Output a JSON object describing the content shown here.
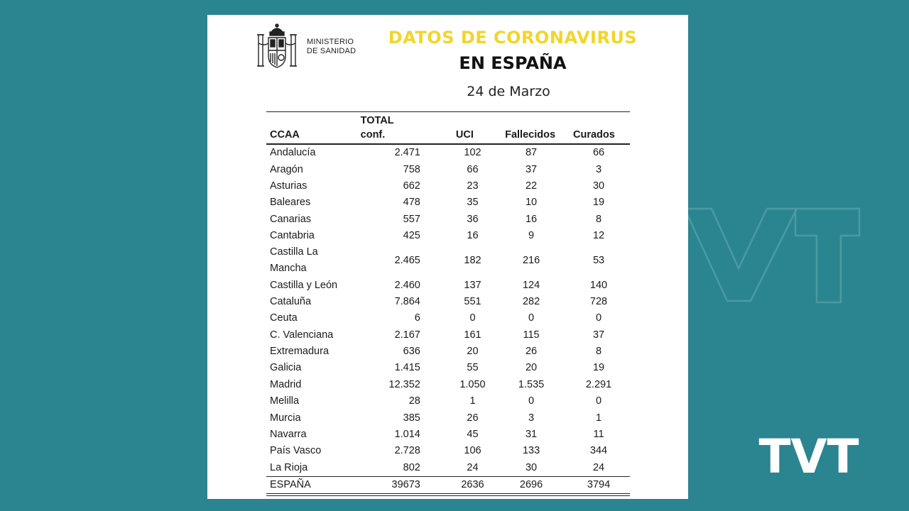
{
  "ministry": {
    "line1": "MINISTERIO",
    "line2": "DE SANIDAD"
  },
  "title": {
    "line1": "DATOS DE CORONAVIRUS",
    "line2": "EN ESPAÑA",
    "date": "24 de Marzo"
  },
  "colors": {
    "background": "#2b8590",
    "title_accent": "#f2d52b",
    "logo": "#ffffff"
  },
  "brand": {
    "logo_text": "TVT"
  },
  "table": {
    "headers": {
      "region": "CCAA",
      "total_line1": "TOTAL",
      "total_line2": "conf.",
      "uci": "UCI",
      "fallecidos": "Fallecidos",
      "curados": "Curados"
    },
    "rows": [
      {
        "region": "Andalucía",
        "total": "2.471",
        "uci": "102",
        "fallecidos": "87",
        "curados": "66"
      },
      {
        "region": "Aragón",
        "total": "758",
        "uci": "66",
        "fallecidos": "37",
        "curados": "3"
      },
      {
        "region": "Asturias",
        "total": "662",
        "uci": "23",
        "fallecidos": "22",
        "curados": "30"
      },
      {
        "region": "Baleares",
        "total": "478",
        "uci": "35",
        "fallecidos": "10",
        "curados": "19"
      },
      {
        "region": "Canarias",
        "total": "557",
        "uci": "36",
        "fallecidos": "16",
        "curados": "8"
      },
      {
        "region": "Cantabria",
        "total": "425",
        "uci": "16",
        "fallecidos": "9",
        "curados": "12"
      },
      {
        "region": "Castilla La Mancha",
        "total": "2.465",
        "uci": "182",
        "fallecidos": "216",
        "curados": "53"
      },
      {
        "region": "Castilla y León",
        "total": "2.460",
        "uci": "137",
        "fallecidos": "124",
        "curados": "140"
      },
      {
        "region": "Cataluña",
        "total": "7.864",
        "uci": "551",
        "fallecidos": "282",
        "curados": "728"
      },
      {
        "region": "Ceuta",
        "total": "6",
        "uci": "0",
        "fallecidos": "0",
        "curados": "0"
      },
      {
        "region": "C. Valenciana",
        "total": "2.167",
        "uci": "161",
        "fallecidos": "115",
        "curados": "37"
      },
      {
        "region": "Extremadura",
        "total": "636",
        "uci": "20",
        "fallecidos": "26",
        "curados": "8"
      },
      {
        "region": "Galicia",
        "total": "1.415",
        "uci": "55",
        "fallecidos": "20",
        "curados": "19"
      },
      {
        "region": "Madrid",
        "total": "12.352",
        "uci": "1.050",
        "fallecidos": "1.535",
        "curados": "2.291"
      },
      {
        "region": "Melilla",
        "total": "28",
        "uci": "1",
        "fallecidos": "0",
        "curados": "0"
      },
      {
        "region": "Murcia",
        "total": "385",
        "uci": "26",
        "fallecidos": "3",
        "curados": "1"
      },
      {
        "region": "Navarra",
        "total": "1.014",
        "uci": "45",
        "fallecidos": "31",
        "curados": "11"
      },
      {
        "region": "País Vasco",
        "total": "2.728",
        "uci": "106",
        "fallecidos": "133",
        "curados": "344"
      },
      {
        "region": "La Rioja",
        "total": "802",
        "uci": "24",
        "fallecidos": "30",
        "curados": "24"
      }
    ],
    "total_row": {
      "region": "ESPAÑA",
      "total": "39673",
      "uci": "2636",
      "fallecidos": "2696",
      "curados": "3794"
    }
  }
}
